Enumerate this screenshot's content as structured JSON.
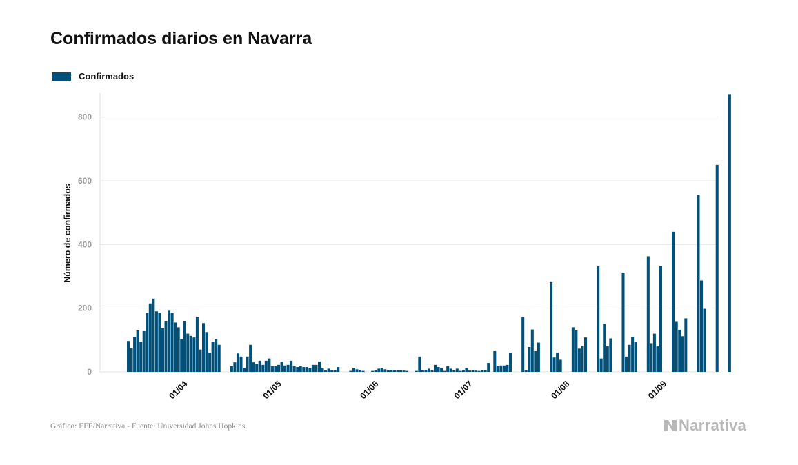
{
  "title": "Confirmados diarios en Navarra",
  "footer": "Gráfico: EFE/Narrativa - Fuente: Universidad Johns Hopkins",
  "logo": "Narrativa",
  "colors": {
    "bar": "#00507a",
    "grid": "#e6e6e6",
    "tick": "#9a9a9a"
  },
  "chart_data": {
    "type": "bar",
    "title": "Confirmados diarios en Navarra",
    "xlabel": "",
    "ylabel": "Número de confirmados",
    "ylim": [
      0,
      875
    ],
    "yticks": [
      0,
      200,
      400,
      600,
      800
    ],
    "grid": true,
    "legend_position": "top-left",
    "x_tick_labels": [
      {
        "label": "01/04",
        "date": "2020-04-01"
      },
      {
        "label": "01/05",
        "date": "2020-05-01"
      },
      {
        "label": "01/06",
        "date": "2020-06-01"
      },
      {
        "label": "01/07",
        "date": "2020-07-01"
      },
      {
        "label": "01/08",
        "date": "2020-08-01"
      },
      {
        "label": "01/09",
        "date": "2020-09-01"
      }
    ],
    "x_start": "2020-03-13",
    "series": [
      {
        "name": "Confirmados",
        "values": [
          97,
          75,
          110,
          130,
          95,
          128,
          185,
          215,
          230,
          190,
          185,
          138,
          160,
          192,
          185,
          155,
          140,
          103,
          160,
          120,
          113,
          108,
          173,
          70,
          153,
          125,
          60,
          95,
          103,
          85,
          0,
          0,
          0,
          18,
          30,
          58,
          48,
          12,
          48,
          85,
          30,
          25,
          35,
          22,
          35,
          42,
          18,
          18,
          22,
          32,
          20,
          22,
          35,
          18,
          15,
          18,
          15,
          15,
          12,
          22,
          22,
          32,
          13,
          5,
          10,
          5,
          5,
          15,
          0,
          0,
          0,
          3,
          12,
          8,
          6,
          3,
          0,
          0,
          3,
          5,
          10,
          12,
          8,
          5,
          6,
          5,
          5,
          5,
          4,
          3,
          0,
          0,
          3,
          48,
          5,
          6,
          10,
          5,
          22,
          15,
          12,
          3,
          18,
          10,
          5,
          10,
          3,
          5,
          12,
          4,
          5,
          4,
          3,
          6,
          5,
          28,
          0,
          65,
          18,
          20,
          20,
          22,
          60,
          0,
          0,
          0,
          172,
          5,
          78,
          133,
          65,
          92,
          0,
          0,
          0,
          282,
          45,
          60,
          38,
          0,
          0,
          0,
          140,
          130,
          73,
          82,
          108,
          0,
          0,
          0,
          332,
          42,
          150,
          80,
          105,
          0,
          0,
          0,
          312,
          48,
          85,
          110,
          93,
          0,
          0,
          0,
          363,
          90,
          120,
          80,
          333,
          0,
          0,
          0,
          440,
          157,
          132,
          112,
          168,
          0,
          0,
          0,
          555,
          287,
          198,
          0,
          0,
          0,
          650,
          0,
          0,
          0,
          872
        ]
      }
    ]
  }
}
